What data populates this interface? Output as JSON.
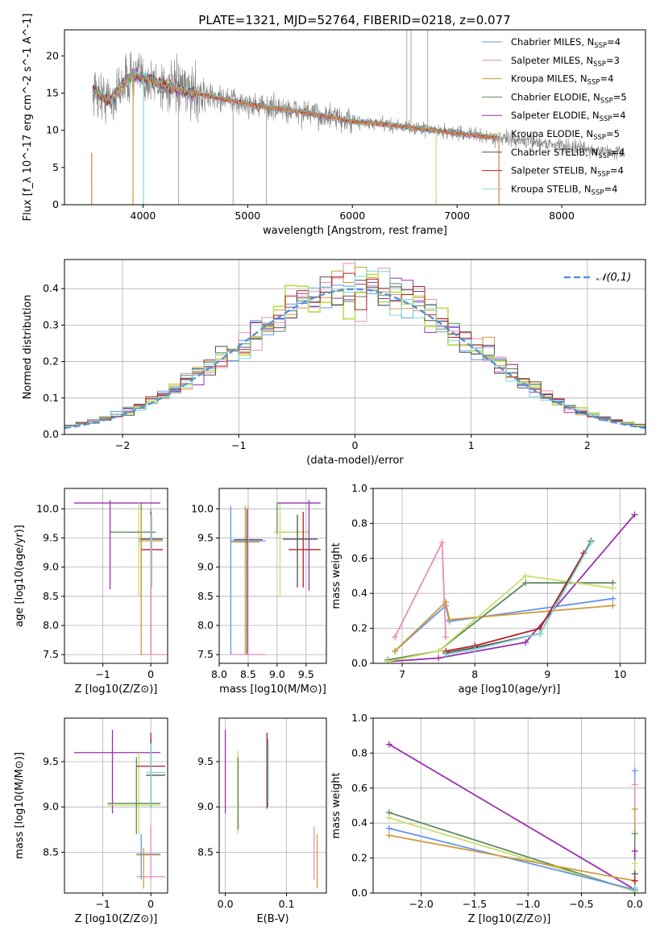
{
  "title": "PLATE=1321, MJD=52764, FIBERID=0218, z=0.077",
  "colors": {
    "Chabrier MILES": "#6495ed",
    "Salpeter MILES": "#e58fb7",
    "Kroupa MILES": "#d19a3a",
    "Chabrier ELODIE": "#5d8a5d",
    "Salpeter ELODIE": "#9b2fae",
    "Kroupa ELODIE": "#c8e06a",
    "Chabrier STELIB": "#505050",
    "Salpeter STELIB": "#b22222",
    "Kroupa STELIB": "#7fd6d6",
    "data": "#808080",
    "model_orange": "#e07b39",
    "gaussian": "#5b8fd6"
  },
  "legend_top": [
    "Chabrier MILES, N_SSP=4",
    "Salpeter MILES, N_SSP=3",
    "Kroupa MILES, N_SSP=4",
    "Chabrier ELODIE, N_SSP=5",
    "Salpeter ELODIE, N_SSP=4",
    "Kroupa ELODIE, N_SSP=5",
    "Chabrier STELIB, N_SSP=4",
    "Salpeter STELIB, N_SSP=4",
    "Kroupa STELIB, N_SSP=4"
  ],
  "legend_hist": "𝒩(0,1)",
  "chart_data": [
    {
      "id": "spectrum",
      "type": "line",
      "xlabel": "wavelength [Angstrom, rest frame]",
      "ylabel": "Flux [f_λ 10^-17 erg cm^-2 s^-1 A^-1]",
      "xlim": [
        3250,
        8800
      ],
      "ylim": [
        0,
        23.5
      ],
      "xticks": [
        4000,
        5000,
        6000,
        7000,
        8000
      ],
      "yticks": [
        0,
        5,
        10,
        15,
        20
      ],
      "continuum_model": {
        "x": [
          3520,
          3600,
          3700,
          3800,
          3900,
          4000,
          4200,
          4500,
          5000,
          5500,
          6000,
          6500,
          7000,
          7500,
          8000,
          8500
        ],
        "y": [
          15.5,
          14.5,
          14,
          16,
          17.5,
          17,
          16,
          15,
          13.5,
          12.5,
          11.2,
          10.5,
          9.6,
          8.8,
          8.0,
          7.0
        ]
      },
      "model_xrange": [
        3520,
        7400
      ],
      "data_xrange": [
        3520,
        8600
      ]
    },
    {
      "id": "residuals",
      "type": "histogram",
      "xlabel": "(data-model)/error",
      "ylabel": "Normed distribution",
      "xlim": [
        -2.5,
        2.5
      ],
      "ylim": [
        0,
        0.48
      ],
      "xticks": [
        -2,
        -1,
        0,
        1,
        2
      ],
      "yticks": [
        0,
        0.1,
        0.2,
        0.3,
        0.4
      ],
      "bin_width": 0.1,
      "bin_start": -2.5,
      "gaussian": {
        "mu": 0,
        "sigma": 1
      }
    },
    {
      "id": "age_vs_Z",
      "type": "errorbar",
      "xlabel": "Z [log10(Z/Z⊙)]",
      "ylabel": "age  [log10(age/yr)]",
      "xlim": [
        -1.8,
        0.35
      ],
      "ylim": [
        7.35,
        10.35
      ],
      "xticks": [
        -1,
        0
      ],
      "yticks": [
        7.5,
        8.0,
        8.5,
        9.0,
        9.5,
        10.0
      ]
    },
    {
      "id": "age_vs_mass",
      "type": "errorbar",
      "xlabel": "mass [log10(M/M⊙)]",
      "xlim": [
        8.0,
        9.85
      ],
      "ylim": [
        7.35,
        10.35
      ],
      "xticks": [
        8.0,
        8.5,
        9.0,
        9.5
      ],
      "yticks": [
        7.5,
        8.0,
        8.5,
        9.0,
        9.5,
        10.0
      ]
    },
    {
      "id": "weight_vs_age",
      "type": "line",
      "xlabel": "age  [log10(age/yr)]",
      "ylabel": "mass weight",
      "xlim": [
        6.6,
        10.35
      ],
      "ylim": [
        0,
        1.0
      ],
      "xticks": [
        7,
        8,
        9,
        10
      ],
      "yticks": [
        0.0,
        0.2,
        0.4,
        0.6,
        0.8,
        1.0
      ],
      "series": [
        {
          "name": "Chabrier MILES",
          "x": [
            6.9,
            7.6,
            7.65,
            9.9
          ],
          "y": [
            0.07,
            0.33,
            0.24,
            0.37
          ]
        },
        {
          "name": "Salpeter MILES",
          "x": [
            6.9,
            7.55,
            7.6
          ],
          "y": [
            0.15,
            0.69,
            0.15
          ]
        },
        {
          "name": "Kroupa MILES",
          "x": [
            6.9,
            7.6,
            7.65,
            9.9
          ],
          "y": [
            0.07,
            0.35,
            0.25,
            0.33
          ]
        },
        {
          "name": "Chabrier ELODIE",
          "x": [
            6.8,
            7.5,
            8.7,
            9.9
          ],
          "y": [
            0.02,
            0.07,
            0.46,
            0.46
          ]
        },
        {
          "name": "Salpeter ELODIE",
          "x": [
            6.8,
            7.5,
            8.7,
            10.2
          ],
          "y": [
            0.01,
            0.03,
            0.12,
            0.85
          ]
        },
        {
          "name": "Kroupa ELODIE",
          "x": [
            6.8,
            7.5,
            8.7,
            9.9
          ],
          "y": [
            0.01,
            0.07,
            0.5,
            0.43
          ]
        },
        {
          "name": "Chabrier STELIB",
          "x": [
            7.6,
            8.0,
            8.9,
            9.6
          ],
          "y": [
            0.06,
            0.09,
            0.17,
            0.7
          ]
        },
        {
          "name": "Salpeter STELIB",
          "x": [
            7.6,
            8.0,
            8.9,
            9.5
          ],
          "y": [
            0.07,
            0.1,
            0.2,
            0.63
          ]
        },
        {
          "name": "Kroupa STELIB",
          "x": [
            7.6,
            8.0,
            8.9,
            9.6
          ],
          "y": [
            0.05,
            0.08,
            0.17,
            0.69
          ]
        }
      ]
    },
    {
      "id": "mass_vs_Z",
      "type": "errorbar",
      "xlabel": "Z [log10(Z/Z⊙)]",
      "ylabel": "mass [log10(M/M⊙)]",
      "xlim": [
        -1.8,
        0.35
      ],
      "ylim": [
        8.05,
        9.98
      ],
      "xticks": [
        -1,
        0
      ],
      "yticks": [
        8.5,
        9.0,
        9.5
      ]
    },
    {
      "id": "mass_vs_EBV",
      "type": "errorbar",
      "xlabel": "E(B-V)",
      "xlim": [
        -0.01,
        0.165
      ],
      "ylim": [
        8.05,
        9.98
      ],
      "xticks": [
        0.0,
        0.1
      ],
      "yticks": [
        8.5,
        9.0,
        9.5
      ]
    },
    {
      "id": "weight_vs_Z",
      "type": "line",
      "xlabel": "Z [log10(Z/Z⊙)]",
      "ylabel": "mass weight",
      "xlim": [
        -2.45,
        0.1
      ],
      "ylim": [
        0,
        1.0
      ],
      "xticks": [
        -2.0,
        -1.5,
        -1.0,
        -0.5,
        0.0
      ],
      "yticks": [
        0.0,
        0.2,
        0.4,
        0.6,
        0.8,
        1.0
      ],
      "series": [
        {
          "name": "Salpeter ELODIE",
          "x": [
            -2.3,
            0.0
          ],
          "y": [
            0.85,
            0.02
          ]
        },
        {
          "name": "Chabrier ELODIE",
          "x": [
            -2.3,
            0.0
          ],
          "y": [
            0.46,
            0.01
          ]
        },
        {
          "name": "Kroupa ELODIE",
          "x": [
            -2.3,
            0.0
          ],
          "y": [
            0.43,
            0.01
          ]
        },
        {
          "name": "Chabrier MILES",
          "x": [
            -2.3,
            0.0
          ],
          "y": [
            0.37,
            0.02
          ]
        },
        {
          "name": "Kroupa MILES",
          "x": [
            -2.3,
            0.0
          ],
          "y": [
            0.33,
            0.07
          ]
        }
      ]
    }
  ]
}
